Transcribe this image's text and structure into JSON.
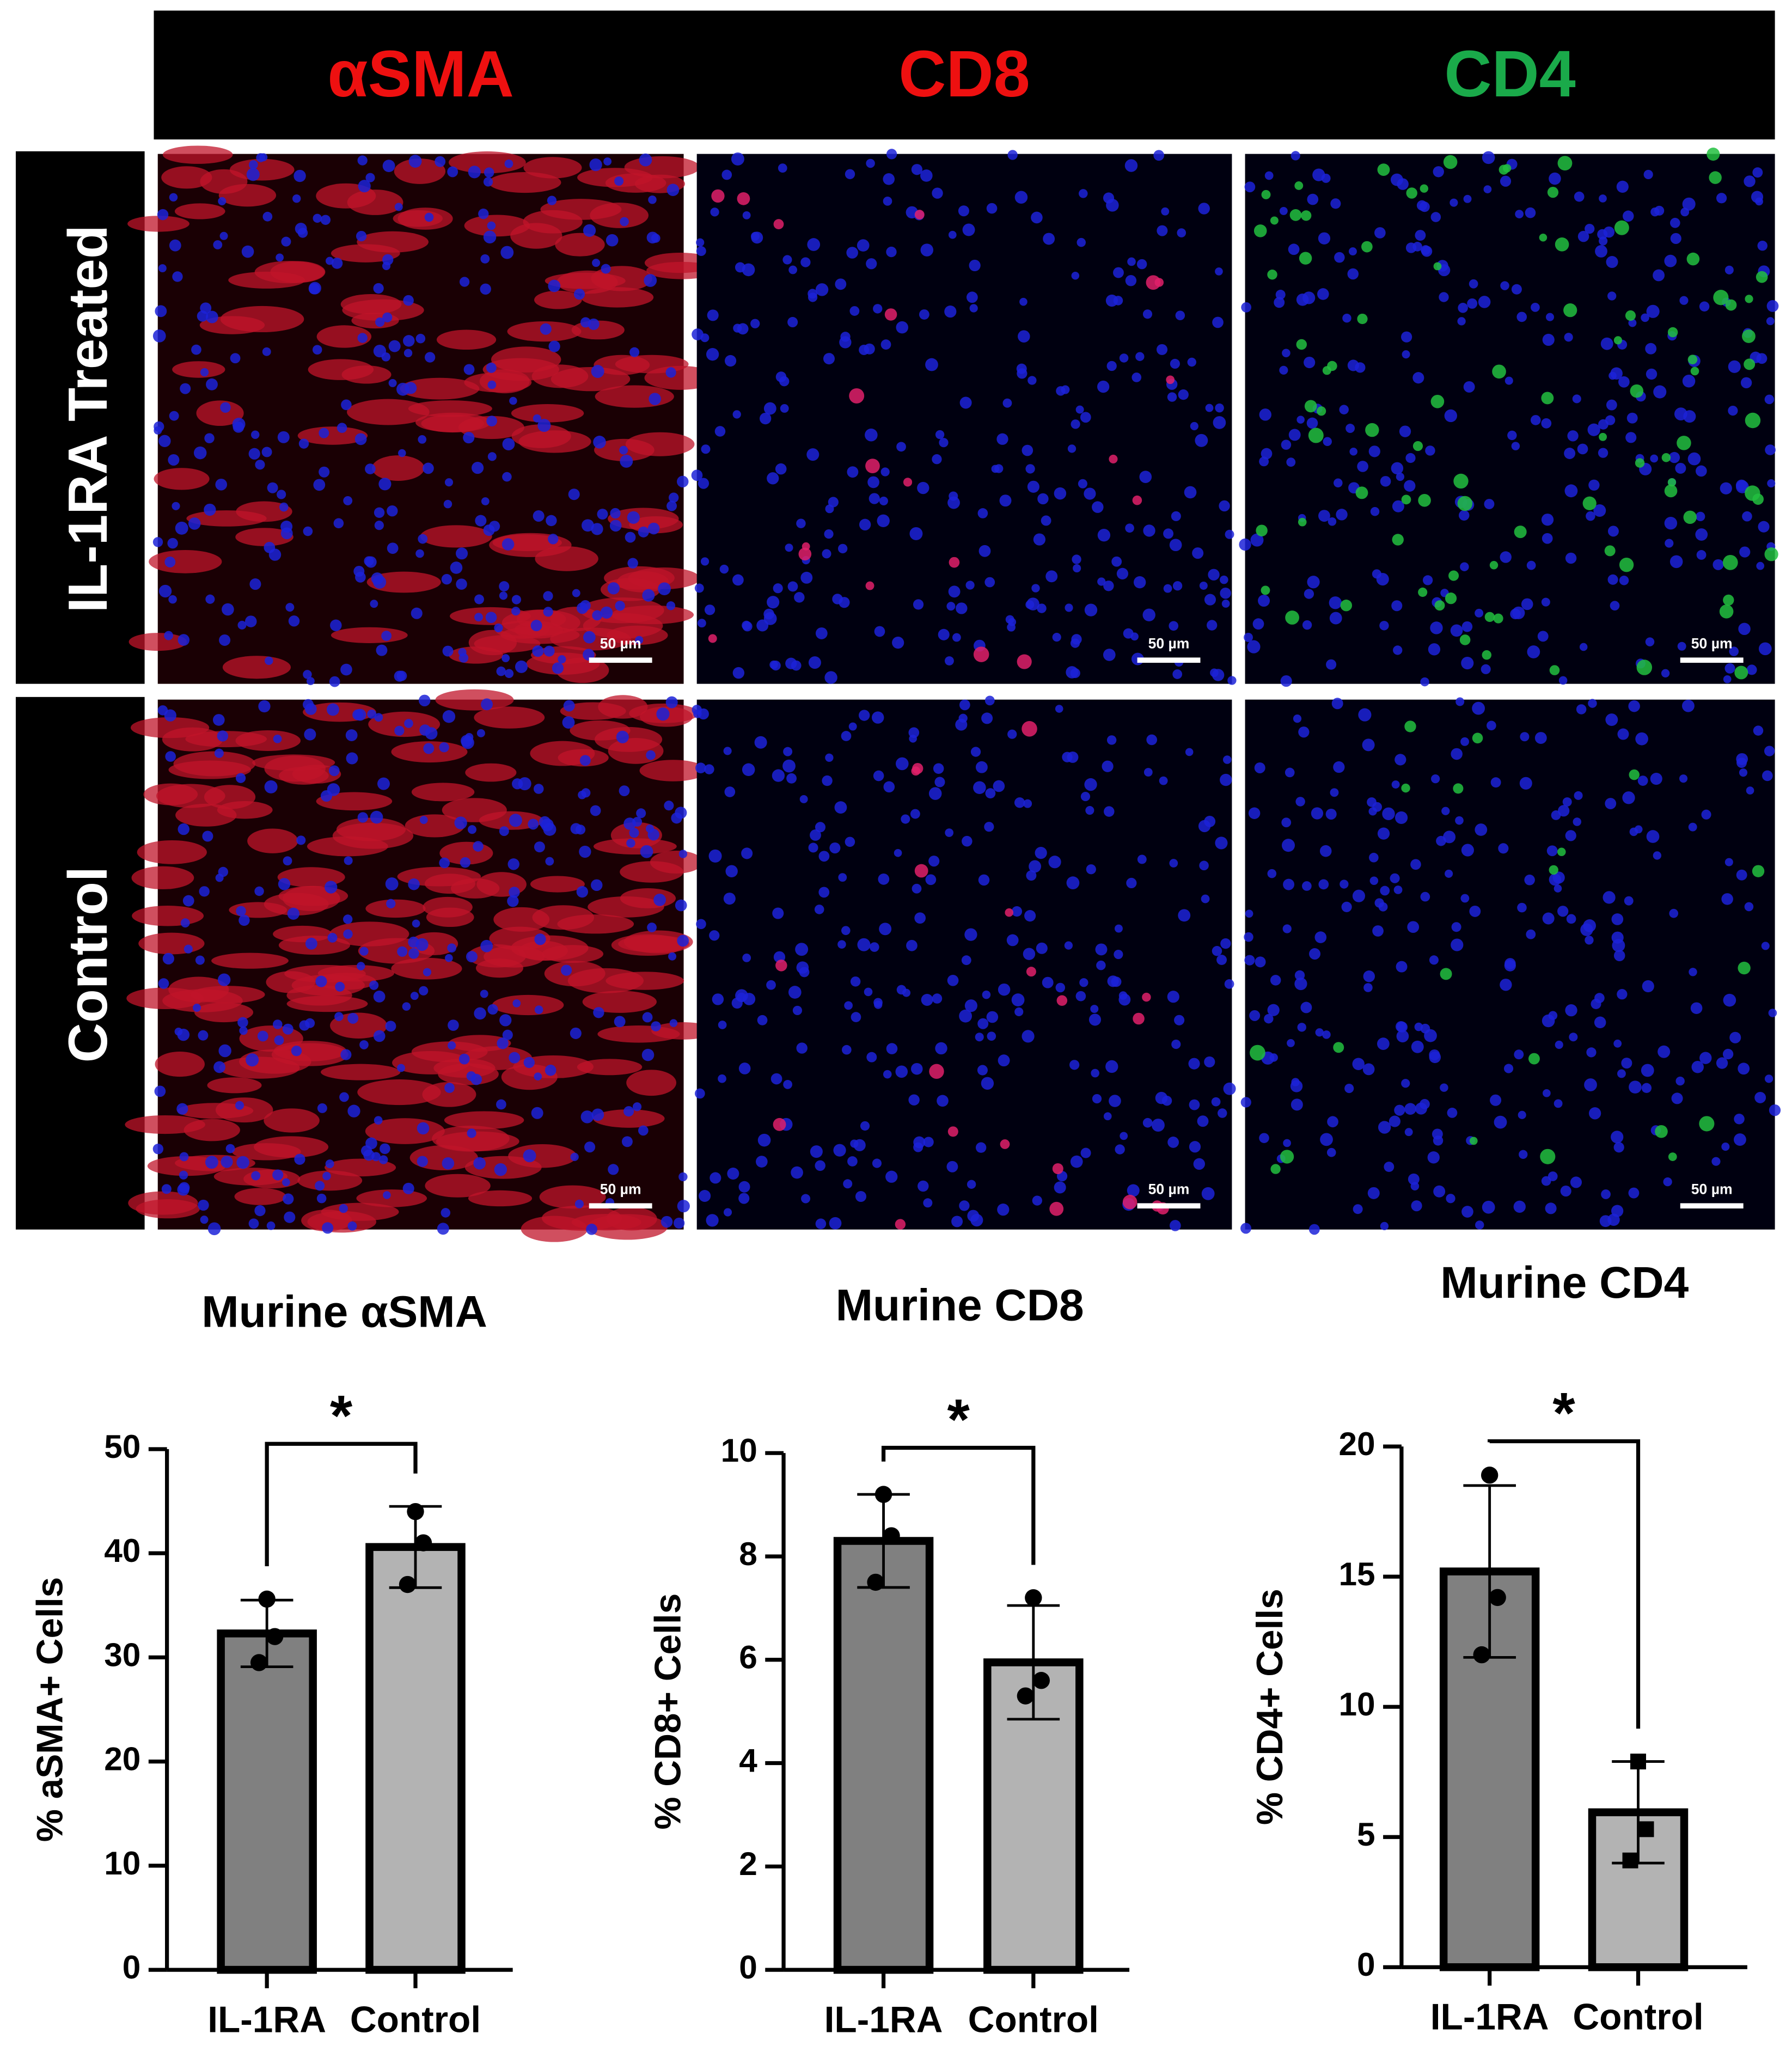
{
  "figure": {
    "columns": [
      {
        "label": "αSMA",
        "color": "#ee1010"
      },
      {
        "label": "CD8",
        "color": "#ee1010"
      },
      {
        "label": "CD4",
        "color": "#1aaa4a"
      }
    ],
    "rows": [
      "IL-1RA Treated",
      "Control"
    ],
    "scale_bar": "50 µm"
  },
  "chart_data": [
    {
      "type": "bar",
      "title": "Murine αSMA",
      "y_label": "% aSMA+ Cells",
      "categories": [
        "IL-1RA",
        "Control"
      ],
      "values": [
        32.3,
        40.6
      ],
      "errors": [
        3.2,
        3.9
      ],
      "points": [
        [
          35.6,
          32,
          29.5
        ],
        [
          44,
          41,
          37
        ]
      ],
      "markers": [
        "circle",
        "circle"
      ],
      "colors": [
        "#808080",
        "#b3b3b3"
      ],
      "ylim": [
        0,
        50
      ],
      "yticks": [
        0,
        10,
        20,
        30,
        40,
        50
      ],
      "significance": "*"
    },
    {
      "type": "bar",
      "title": "Murine CD8",
      "y_label": "% CD8+ Cells",
      "categories": [
        "IL-1RA",
        "Control"
      ],
      "values": [
        8.3,
        5.95
      ],
      "errors": [
        0.9,
        1.1
      ],
      "points": [
        [
          9.2,
          8.4,
          7.5
        ],
        [
          7.2,
          5.6,
          5.3
        ]
      ],
      "markers": [
        "circle",
        "circle"
      ],
      "colors": [
        "#808080",
        "#b3b3b3"
      ],
      "ylim": [
        0,
        10
      ],
      "yticks": [
        0,
        2,
        4,
        6,
        8,
        10
      ],
      "significance": "*"
    },
    {
      "type": "bar",
      "title": "Murine CD4",
      "y_label": "% CD4+ Cells",
      "categories": [
        "IL-1RA",
        "Control"
      ],
      "values": [
        15.2,
        5.95
      ],
      "errors": [
        3.3,
        1.95
      ],
      "points": [
        [
          18.9,
          14.2,
          12.0
        ],
        [
          7.9,
          5.3,
          4.1
        ]
      ],
      "markers": [
        "circle",
        "square"
      ],
      "colors": [
        "#808080",
        "#b3b3b3"
      ],
      "ylim": [
        0,
        20
      ],
      "yticks": [
        0,
        5,
        10,
        15,
        20
      ],
      "significance": "*"
    }
  ]
}
